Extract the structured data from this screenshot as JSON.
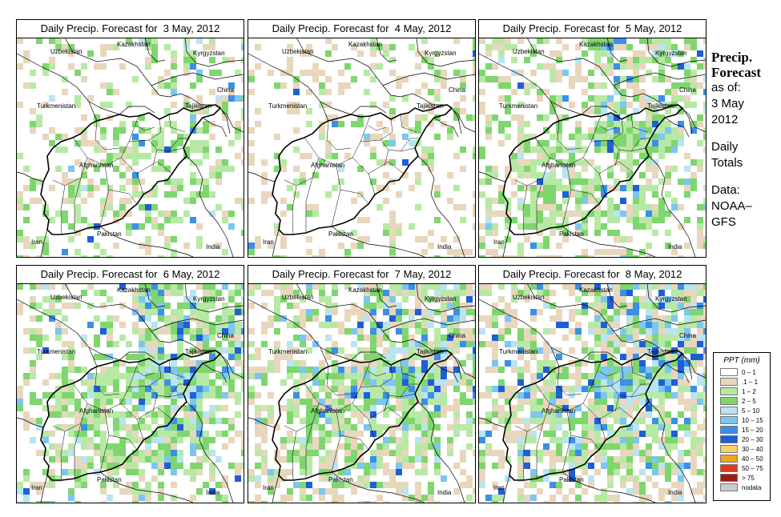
{
  "panels": [
    {
      "title": "Daily Precip. Forecast for  3 May, 2012",
      "seed": 11,
      "greenDensity": 0.22,
      "blueDensity": 0.03,
      "beigeDensity": 0.1
    },
    {
      "title": "Daily Precip. Forecast for  4 May, 2012",
      "seed": 23,
      "greenDensity": 0.08,
      "blueDensity": 0.01,
      "beigeDensity": 0.14
    },
    {
      "title": "Daily Precip. Forecast for  5 May, 2012",
      "seed": 37,
      "greenDensity": 0.35,
      "blueDensity": 0.08,
      "beigeDensity": 0.16
    },
    {
      "title": "Daily Precip. Forecast for  6 May, 2012",
      "seed": 41,
      "greenDensity": 0.4,
      "blueDensity": 0.14,
      "beigeDensity": 0.14
    },
    {
      "title": "Daily Precip. Forecast for  7 May, 2012",
      "seed": 53,
      "greenDensity": 0.32,
      "blueDensity": 0.16,
      "beigeDensity": 0.22
    },
    {
      "title": "Daily Precip. Forecast for  8 May, 2012",
      "seed": 67,
      "greenDensity": 0.3,
      "blueDensity": 0.2,
      "beigeDensity": 0.24
    }
  ],
  "map_labels": {
    "uzbekistan": "Uzbekistan",
    "kazakhstan": "Kazakhstan",
    "kyrgyzstan": "Kyrgyzstan",
    "china": "China",
    "turkmenistan": "Turkmenistan",
    "tajikistan": "Tajikistan",
    "afghanistan": "Afghanistan",
    "pakistan": "Pakistan",
    "iran": "Iran",
    "india": "India"
  },
  "side": {
    "title_line1": "Precip.",
    "title_line2": "Forecast",
    "asof": "as of:",
    "date_line1": "3 May",
    "date_line2": "2012",
    "daily": "Daily",
    "totals": "Totals",
    "data": "Data:",
    "source_line1": "NOAA–",
    "source_line2": "GFS"
  },
  "legend": {
    "title": "PPT (mm)",
    "items": [
      {
        "label": "0 – 1",
        "color": "#ffffff"
      },
      {
        "label": ".1 – 1",
        "color": "#e8d7bd"
      },
      {
        "label": "1 – 2",
        "color": "#b7e9a5"
      },
      {
        "label": "2 – 5",
        "color": "#7fd66f"
      },
      {
        "label": "5 – 10",
        "color": "#b9e4f2"
      },
      {
        "label": "10 – 15",
        "color": "#7cc6ef"
      },
      {
        "label": "15 – 20",
        "color": "#3c8fe6"
      },
      {
        "label": "20 – 30",
        "color": "#1e5fd6"
      },
      {
        "label": "30 – 40",
        "color": "#f4d36b"
      },
      {
        "label": "40 – 50",
        "color": "#f3a41d"
      },
      {
        "label": "50 – 75",
        "color": "#e2391b"
      },
      {
        "label": "> 75",
        "color": "#a11a14"
      },
      {
        "label": "nodata",
        "color": "#cccccc"
      }
    ]
  }
}
